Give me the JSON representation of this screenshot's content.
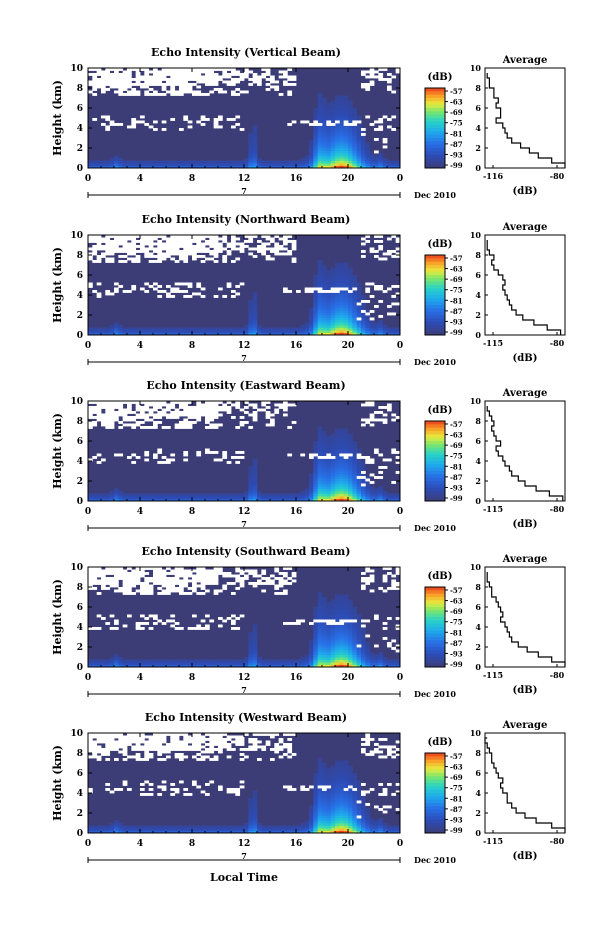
{
  "figure": {
    "xaxis_label": "Local Time",
    "date_label": "Dec 2010",
    "date_day": "7"
  },
  "chart_data": [
    {
      "type": "heatmap",
      "title": "Echo Intensity (Vertical Beam)",
      "xlabel": "",
      "ylabel": "Height (km)",
      "xlim": [
        0,
        24
      ],
      "ylim": [
        0,
        10
      ],
      "xticks": [
        "0",
        "4",
        "8",
        "12",
        "16",
        "20",
        "0"
      ],
      "yticks": [
        "0",
        "2",
        "4",
        "6",
        "8",
        "10"
      ],
      "colorbar": {
        "unit": "(dB)",
        "ticks": [
          "-57",
          "-63",
          "-69",
          "-75",
          "-81",
          "-87",
          "-93",
          "-99"
        ]
      },
      "average": {
        "title": "Average",
        "xlabel": "(dB)",
        "xticks": [
          "-116",
          "-80"
        ],
        "xlim": [
          -116,
          -80
        ],
        "heights": [
          0,
          0.5,
          1,
          1.5,
          2,
          2.5,
          3,
          3.5,
          4,
          4.5,
          5,
          5.5,
          6,
          6.5,
          7,
          7.5,
          8,
          8.5,
          9,
          9.5
        ],
        "values": [
          -80,
          -86,
          -92,
          -96,
          -100,
          -104,
          -106,
          -107,
          -108,
          -111,
          -109,
          -109,
          -111,
          -110,
          -112,
          -112,
          -114,
          -114,
          -115,
          -115
        ]
      }
    },
    {
      "type": "heatmap",
      "title": "Echo Intensity (Northward Beam)",
      "xlabel": "",
      "ylabel": "Height (km)",
      "xlim": [
        0,
        24
      ],
      "ylim": [
        0,
        10
      ],
      "xticks": [
        "0",
        "4",
        "8",
        "12",
        "16",
        "20",
        "0"
      ],
      "yticks": [
        "0",
        "2",
        "4",
        "6",
        "8",
        "10"
      ],
      "colorbar": {
        "unit": "(dB)",
        "ticks": [
          "-57",
          "-63",
          "-69",
          "-75",
          "-81",
          "-87",
          "-93",
          "-99"
        ]
      },
      "average": {
        "title": "Average",
        "xlabel": "(dB)",
        "xticks": [
          "-115",
          "-80"
        ],
        "xlim": [
          -116,
          -80
        ],
        "heights": [
          0,
          0.5,
          1,
          1.5,
          2,
          2.5,
          3,
          3.5,
          4,
          4.5,
          5,
          5.5,
          6,
          6.5,
          7,
          7.5,
          8,
          8.5,
          9,
          9.5
        ],
        "values": [
          -82,
          -88,
          -94,
          -99,
          -102,
          -104,
          -105,
          -106,
          -107,
          -108,
          -107,
          -108,
          -110,
          -112,
          -113,
          -112,
          -114,
          -115,
          -115,
          -115
        ]
      }
    },
    {
      "type": "heatmap",
      "title": "Echo Intensity (Eastward Beam)",
      "xlabel": "",
      "ylabel": "Height (km)",
      "xlim": [
        0,
        24
      ],
      "ylim": [
        0,
        10
      ],
      "xticks": [
        "0",
        "4",
        "8",
        "12",
        "16",
        "20",
        "0"
      ],
      "yticks": [
        "0",
        "2",
        "4",
        "6",
        "8",
        "10"
      ],
      "colorbar": {
        "unit": "(dB)",
        "ticks": [
          "-57",
          "-63",
          "-69",
          "-75",
          "-81",
          "-87",
          "-93",
          "-99"
        ]
      },
      "average": {
        "title": "Average",
        "xlabel": "(dB)",
        "xticks": [
          "-115",
          "-80"
        ],
        "xlim": [
          -116,
          -80
        ],
        "heights": [
          0,
          0.5,
          1,
          1.5,
          2,
          2.5,
          3,
          3.5,
          4,
          4.5,
          5,
          5.5,
          6,
          6.5,
          7,
          7.5,
          8,
          8.5,
          9,
          9.5
        ],
        "values": [
          -81,
          -87,
          -93,
          -98,
          -101,
          -104,
          -105,
          -107,
          -108,
          -110,
          -111,
          -109,
          -111,
          -112,
          -113,
          -112,
          -113,
          -114,
          -115,
          -115
        ]
      }
    },
    {
      "type": "heatmap",
      "title": "Echo Intensity (Southward Beam)",
      "xlabel": "",
      "ylabel": "Height (km)",
      "xlim": [
        0,
        24
      ],
      "ylim": [
        0,
        10
      ],
      "xticks": [
        "0",
        "4",
        "8",
        "12",
        "16",
        "20",
        "0"
      ],
      "yticks": [
        "0",
        "2",
        "4",
        "6",
        "8",
        "10"
      ],
      "colorbar": {
        "unit": "(dB)",
        "ticks": [
          "-57",
          "-63",
          "-69",
          "-75",
          "-81",
          "-87",
          "-93",
          "-99"
        ]
      },
      "average": {
        "title": "Average",
        "xlabel": "(dB)",
        "xticks": [
          "-115",
          "-80"
        ],
        "xlim": [
          -116,
          -80
        ],
        "heights": [
          0,
          0.5,
          1,
          1.5,
          2,
          2.5,
          3,
          3.5,
          4,
          4.5,
          5,
          5.5,
          6,
          6.5,
          7,
          7.5,
          8,
          8.5,
          9,
          9.5
        ],
        "values": [
          -80,
          -86,
          -92,
          -97,
          -101,
          -104,
          -105,
          -106,
          -107,
          -109,
          -108,
          -109,
          -110,
          -111,
          -113,
          -113,
          -114,
          -115,
          -115,
          -115
        ]
      }
    },
    {
      "type": "heatmap",
      "title": "Echo Intensity (Westward Beam)",
      "xlabel": "Local Time",
      "ylabel": "Height (km)",
      "xlim": [
        0,
        24
      ],
      "ylim": [
        0,
        10
      ],
      "xticks": [
        "0",
        "4",
        "8",
        "12",
        "16",
        "20",
        "0"
      ],
      "yticks": [
        "0",
        "2",
        "4",
        "6",
        "8",
        "10"
      ],
      "colorbar": {
        "unit": "(dB)",
        "ticks": [
          "-57",
          "-63",
          "-69",
          "-75",
          "-81",
          "-87",
          "-93",
          "-99"
        ]
      },
      "average": {
        "title": "Average",
        "xlabel": "(dB)",
        "xticks": [
          "-115",
          "-80"
        ],
        "xlim": [
          -116,
          -80
        ],
        "heights": [
          0,
          0.5,
          1,
          1.5,
          2,
          2.5,
          3,
          3.5,
          4,
          4.5,
          5,
          5.5,
          6,
          6.5,
          7,
          7.5,
          8,
          8.5,
          9,
          9.5
        ],
        "values": [
          -80,
          -86,
          -93,
          -98,
          -102,
          -104,
          -106,
          -106,
          -108,
          -109,
          -108,
          -110,
          -111,
          -112,
          -113,
          -113,
          -114,
          -115,
          -116,
          -115
        ]
      }
    }
  ]
}
